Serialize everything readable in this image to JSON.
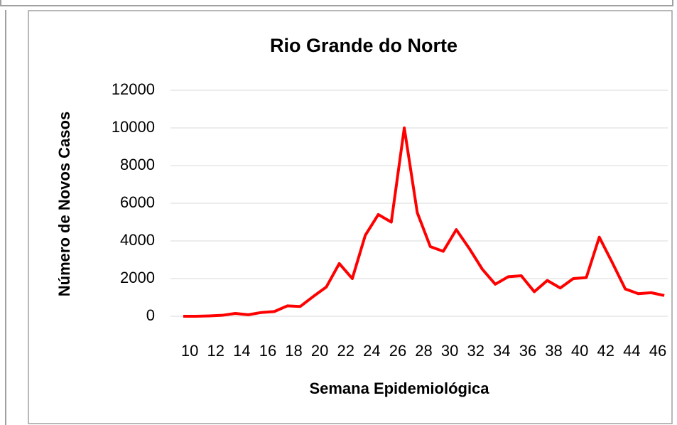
{
  "chart_data": {
    "type": "line",
    "title": "Rio Grande do Norte",
    "x_label": "Semana Epidemiológica",
    "y_label": "Número de Novos Casos",
    "categories": [
      "10",
      null,
      "12",
      null,
      "14",
      null,
      "16",
      null,
      "18",
      null,
      "20",
      null,
      "22",
      null,
      "24",
      null,
      "26",
      null,
      "28",
      null,
      "30",
      null,
      "32",
      null,
      "34",
      null,
      "36",
      null,
      "38",
      null,
      "40",
      null,
      "42",
      null,
      "44",
      null,
      "46",
      null
    ],
    "series": [
      {
        "name": "Rio Grande do Norte",
        "color": "#ff0000",
        "values": [
          0,
          0,
          20,
          50,
          150,
          80,
          200,
          250,
          550,
          520,
          1050,
          1550,
          2800,
          2000,
          4300,
          5400,
          5000,
          10000,
          5500,
          3700,
          3450,
          4600,
          3600,
          2500,
          1700,
          2100,
          2150,
          1300,
          1900,
          1500,
          2000,
          2050,
          4200,
          2850,
          1450,
          1200,
          1250,
          1100
        ]
      }
    ],
    "ylim": [
      0,
      12000
    ],
    "yticks": [
      0,
      2000,
      4000,
      6000,
      8000,
      10000,
      12000
    ],
    "grid": true
  }
}
